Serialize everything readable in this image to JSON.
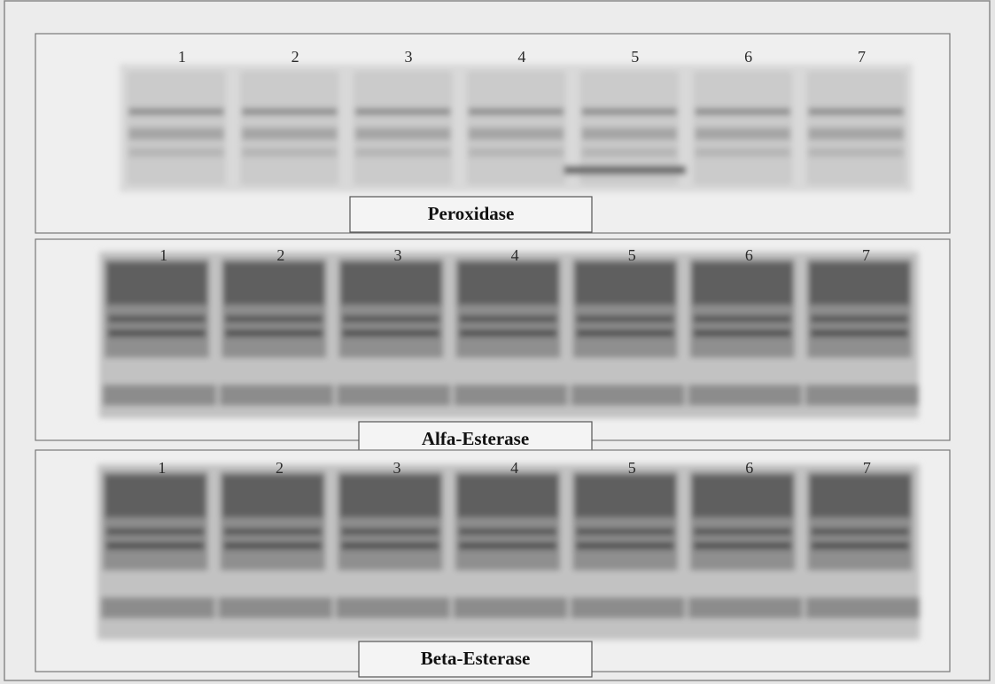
{
  "panels": [
    {
      "label": "Peroxidase",
      "lanes": [
        "1",
        "2",
        "3",
        "4",
        "5",
        "6",
        "7"
      ]
    },
    {
      "label": "Alfa-Esterase",
      "lanes": [
        "1",
        "2",
        "3",
        "4",
        "5",
        "6",
        "7"
      ]
    },
    {
      "label": "Beta-Esterase",
      "lanes": [
        "1",
        "2",
        "3",
        "4",
        "5",
        "6",
        "7"
      ]
    }
  ]
}
